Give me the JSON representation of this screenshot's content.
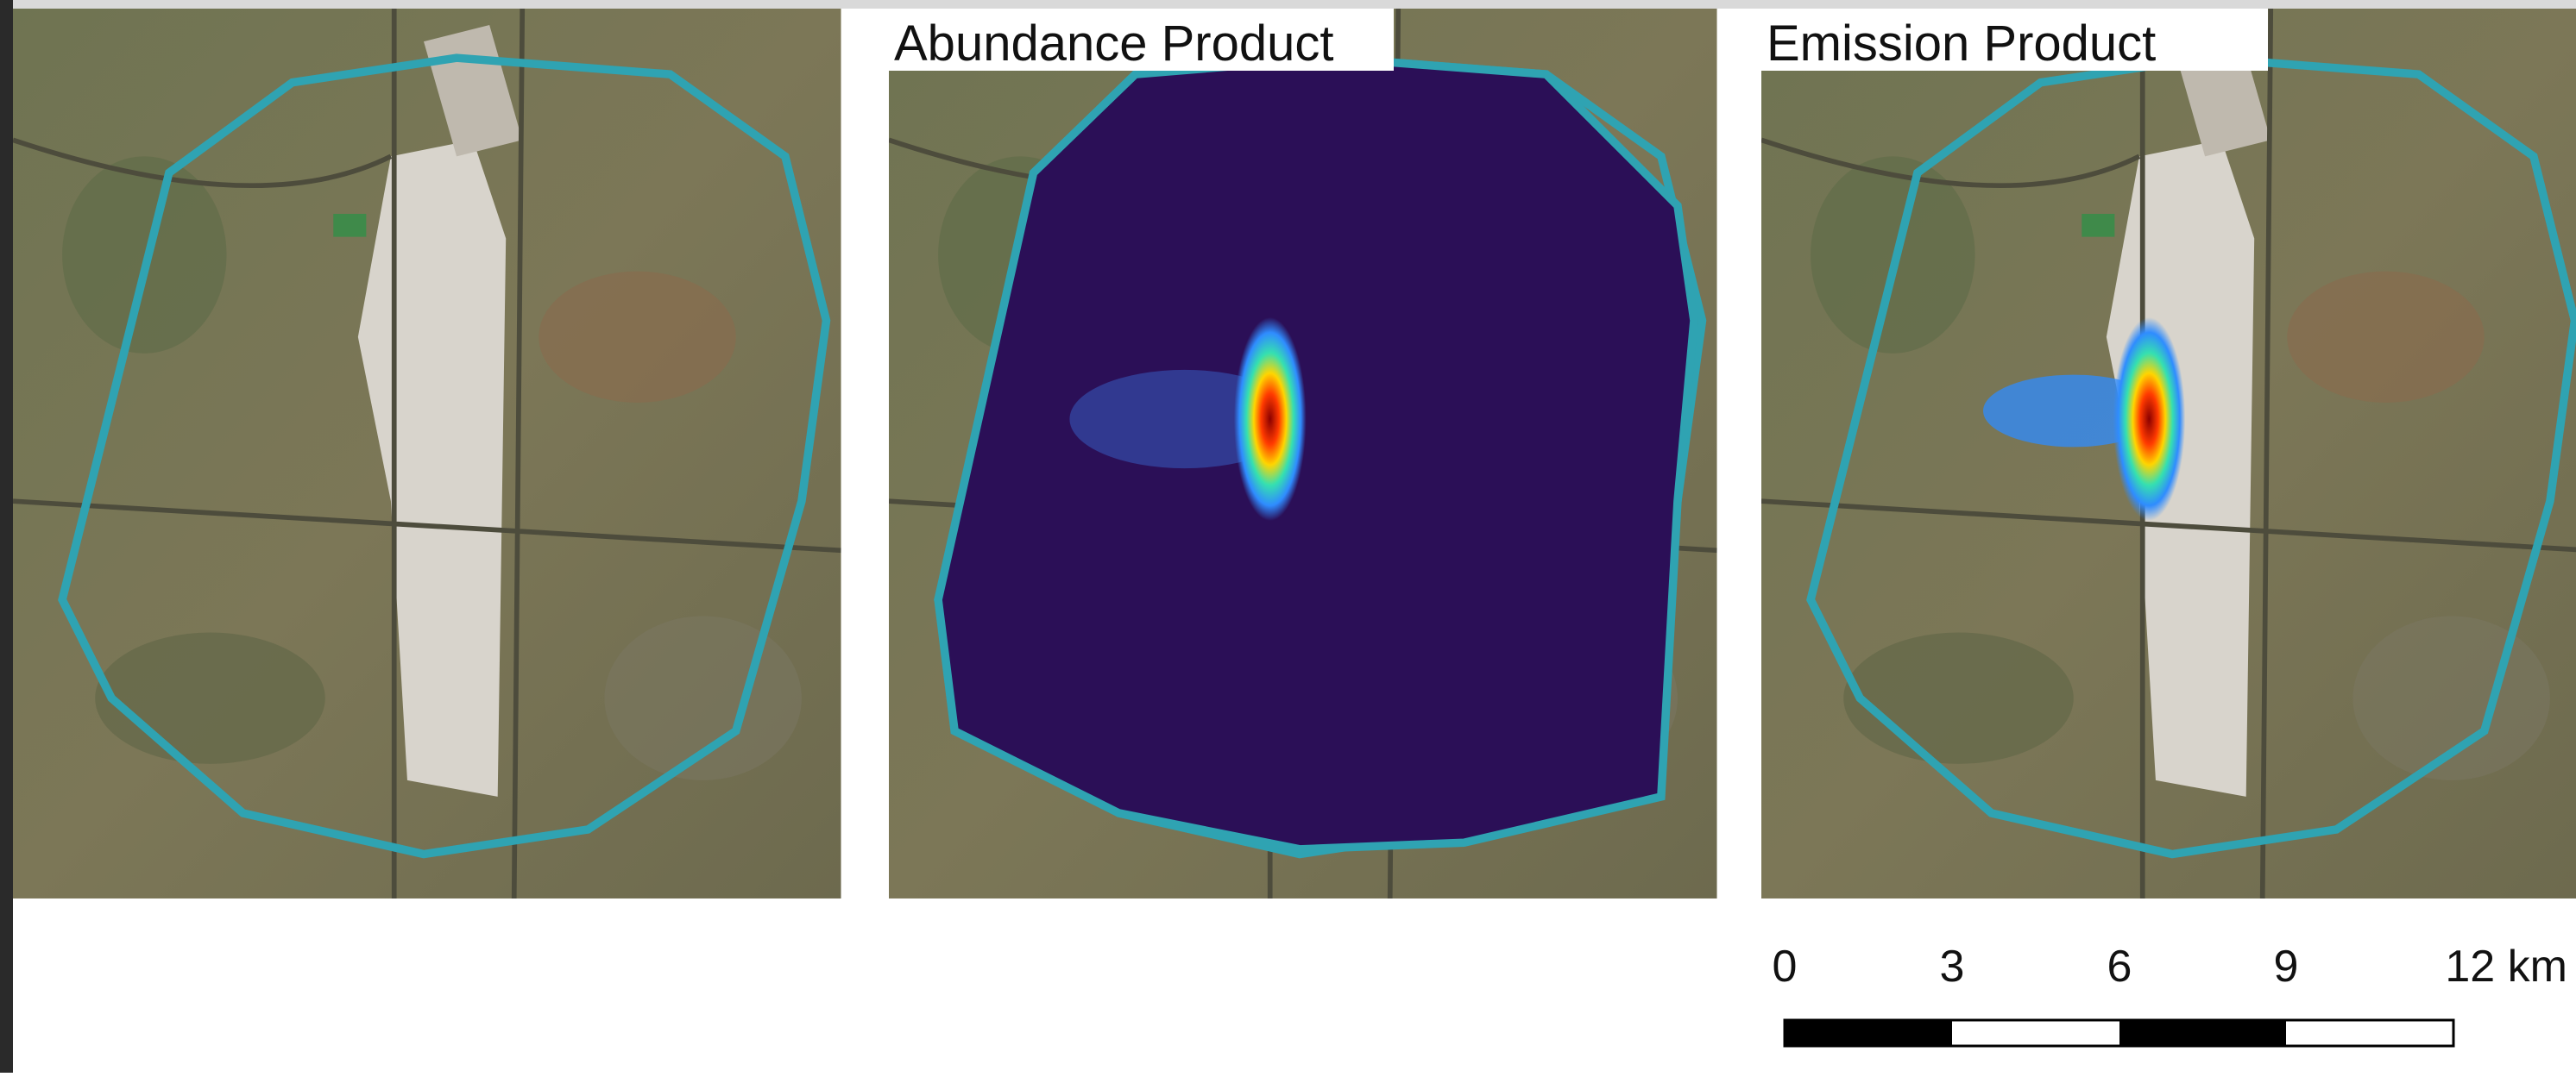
{
  "panels": [
    {
      "title": null
    },
    {
      "title": "Abundance Product"
    },
    {
      "title": "Emission Product"
    }
  ],
  "scale_bar": {
    "labels": [
      "0",
      "3",
      "6",
      "9",
      "12 km"
    ]
  }
}
